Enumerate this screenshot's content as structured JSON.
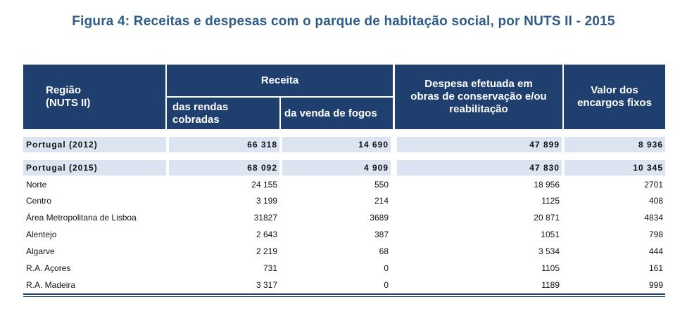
{
  "title": "Figura 4: Receitas e despesas com o parque de habitação social, por NUTS II - 2015",
  "header": {
    "regiao": "Região",
    "nuts": "(NUTS II)",
    "receita": "Receita",
    "rendas_line1": "das rendas",
    "rendas_line2": "cobradas",
    "venda": "da venda de fogos",
    "despesa_line1": "Despesa efetuada em",
    "despesa_line2": "obras de conservação e/ou",
    "despesa_line3": "reabilitação",
    "valor_line1": "Valor dos",
    "valor_line2": "encargos fixos"
  },
  "rows": [
    {
      "label": "Portugal (2012)",
      "rendas": "66 318",
      "venda": "14 690",
      "despesa": "47 899",
      "encargos": "8 936"
    },
    {
      "label": "Portugal (2015)",
      "rendas": "68 092",
      "venda": "4 909",
      "despesa": "47 830",
      "encargos": "10 345"
    },
    {
      "label": "Norte",
      "rendas": "24 155",
      "venda": "550",
      "despesa": "18 956",
      "encargos": "2701"
    },
    {
      "label": "Centro",
      "rendas": "3 199",
      "venda": "214",
      "despesa": "1125",
      "encargos": "408"
    },
    {
      "label": "Área Metropolitana de Lisboa",
      "rendas": "31827",
      "venda": "3689",
      "despesa": "20 871",
      "encargos": "4834"
    },
    {
      "label": "Alentejo",
      "rendas": "2 643",
      "venda": "387",
      "despesa": "1051",
      "encargos": "798"
    },
    {
      "label": "Algarve",
      "rendas": "2 219",
      "venda": "68",
      "despesa": "3 534",
      "encargos": "444"
    },
    {
      "label": "R.A. Açores",
      "rendas": "731",
      "venda": "0",
      "despesa": "1105",
      "encargos": "161"
    },
    {
      "label": "R.A. Madeira",
      "rendas": "3 317",
      "venda": "0",
      "despesa": "1189",
      "encargos": "999"
    }
  ]
}
